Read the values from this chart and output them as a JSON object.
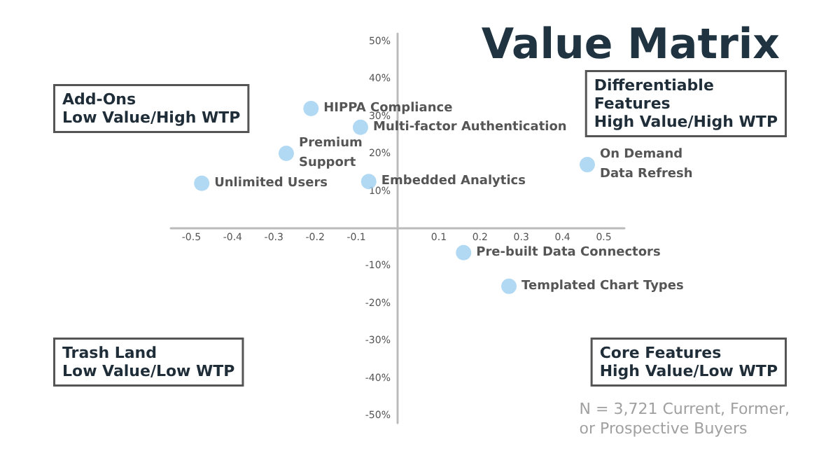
{
  "chart_data": {
    "type": "scatter",
    "title": "Value Matrix",
    "color": "#9fd0f0",
    "marker": "circle",
    "grid": false,
    "x": [
      -0.21,
      -0.09,
      -0.27,
      -0.475,
      -0.07,
      0.46,
      0.16,
      0.27
    ],
    "values": [
      32,
      27,
      20,
      12,
      12.5,
      17,
      -6.5,
      -15.5
    ],
    "xlim": [
      -0.55,
      0.55
    ],
    "xticks": [
      -0.5,
      -0.4,
      -0.3,
      -0.2,
      -0.1,
      0.1,
      0.2,
      0.3,
      0.4,
      0.5
    ],
    "ylim": [
      -52,
      52
    ],
    "yticks": [
      {
        "value": 50,
        "label": "50%"
      },
      {
        "value": 40,
        "label": "40%"
      },
      {
        "value": 30,
        "label": "30%"
      },
      {
        "value": 20,
        "label": "20%"
      },
      {
        "value": 10,
        "label": "10%"
      },
      {
        "value": -10,
        "label": "-10%"
      },
      {
        "value": -20,
        "label": "-20%"
      },
      {
        "value": -30,
        "label": "-30%"
      },
      {
        "value": -40,
        "label": "-40%"
      },
      {
        "value": -50,
        "label": "-50%"
      }
    ],
    "annotations": [
      "Add-Ons\nLow Value/High WTP",
      "Differentiable\nFeatures\nHigh Value/High WTP",
      "Trash Land\nLow Value/Low WTP",
      "Core Features\nHigh Value/Low WTP",
      "N = 3,721 Current, Former,\nor Prospective Buyers",
      {
        "text": "HIPPA Compliance",
        "x": -0.21,
        "y": 32
      },
      {
        "text": "Multi-factor Authentication",
        "x": -0.09,
        "y": 27
      },
      {
        "text": "Premium\nSupport",
        "x": -0.27,
        "y": 20
      },
      {
        "text": "Unlimited Users",
        "x": -0.475,
        "y": 12
      },
      {
        "text": "Embedded Analytics",
        "x": -0.07,
        "y": 12.5
      },
      {
        "text": "On Demand\nData Refresh",
        "x": 0.46,
        "y": 17
      },
      {
        "text": "Pre-built Data Connectors",
        "x": 0.16,
        "y": -6.5
      },
      {
        "text": "Templated Chart Types",
        "x": 0.27,
        "y": -15.5
      }
    ]
  }
}
